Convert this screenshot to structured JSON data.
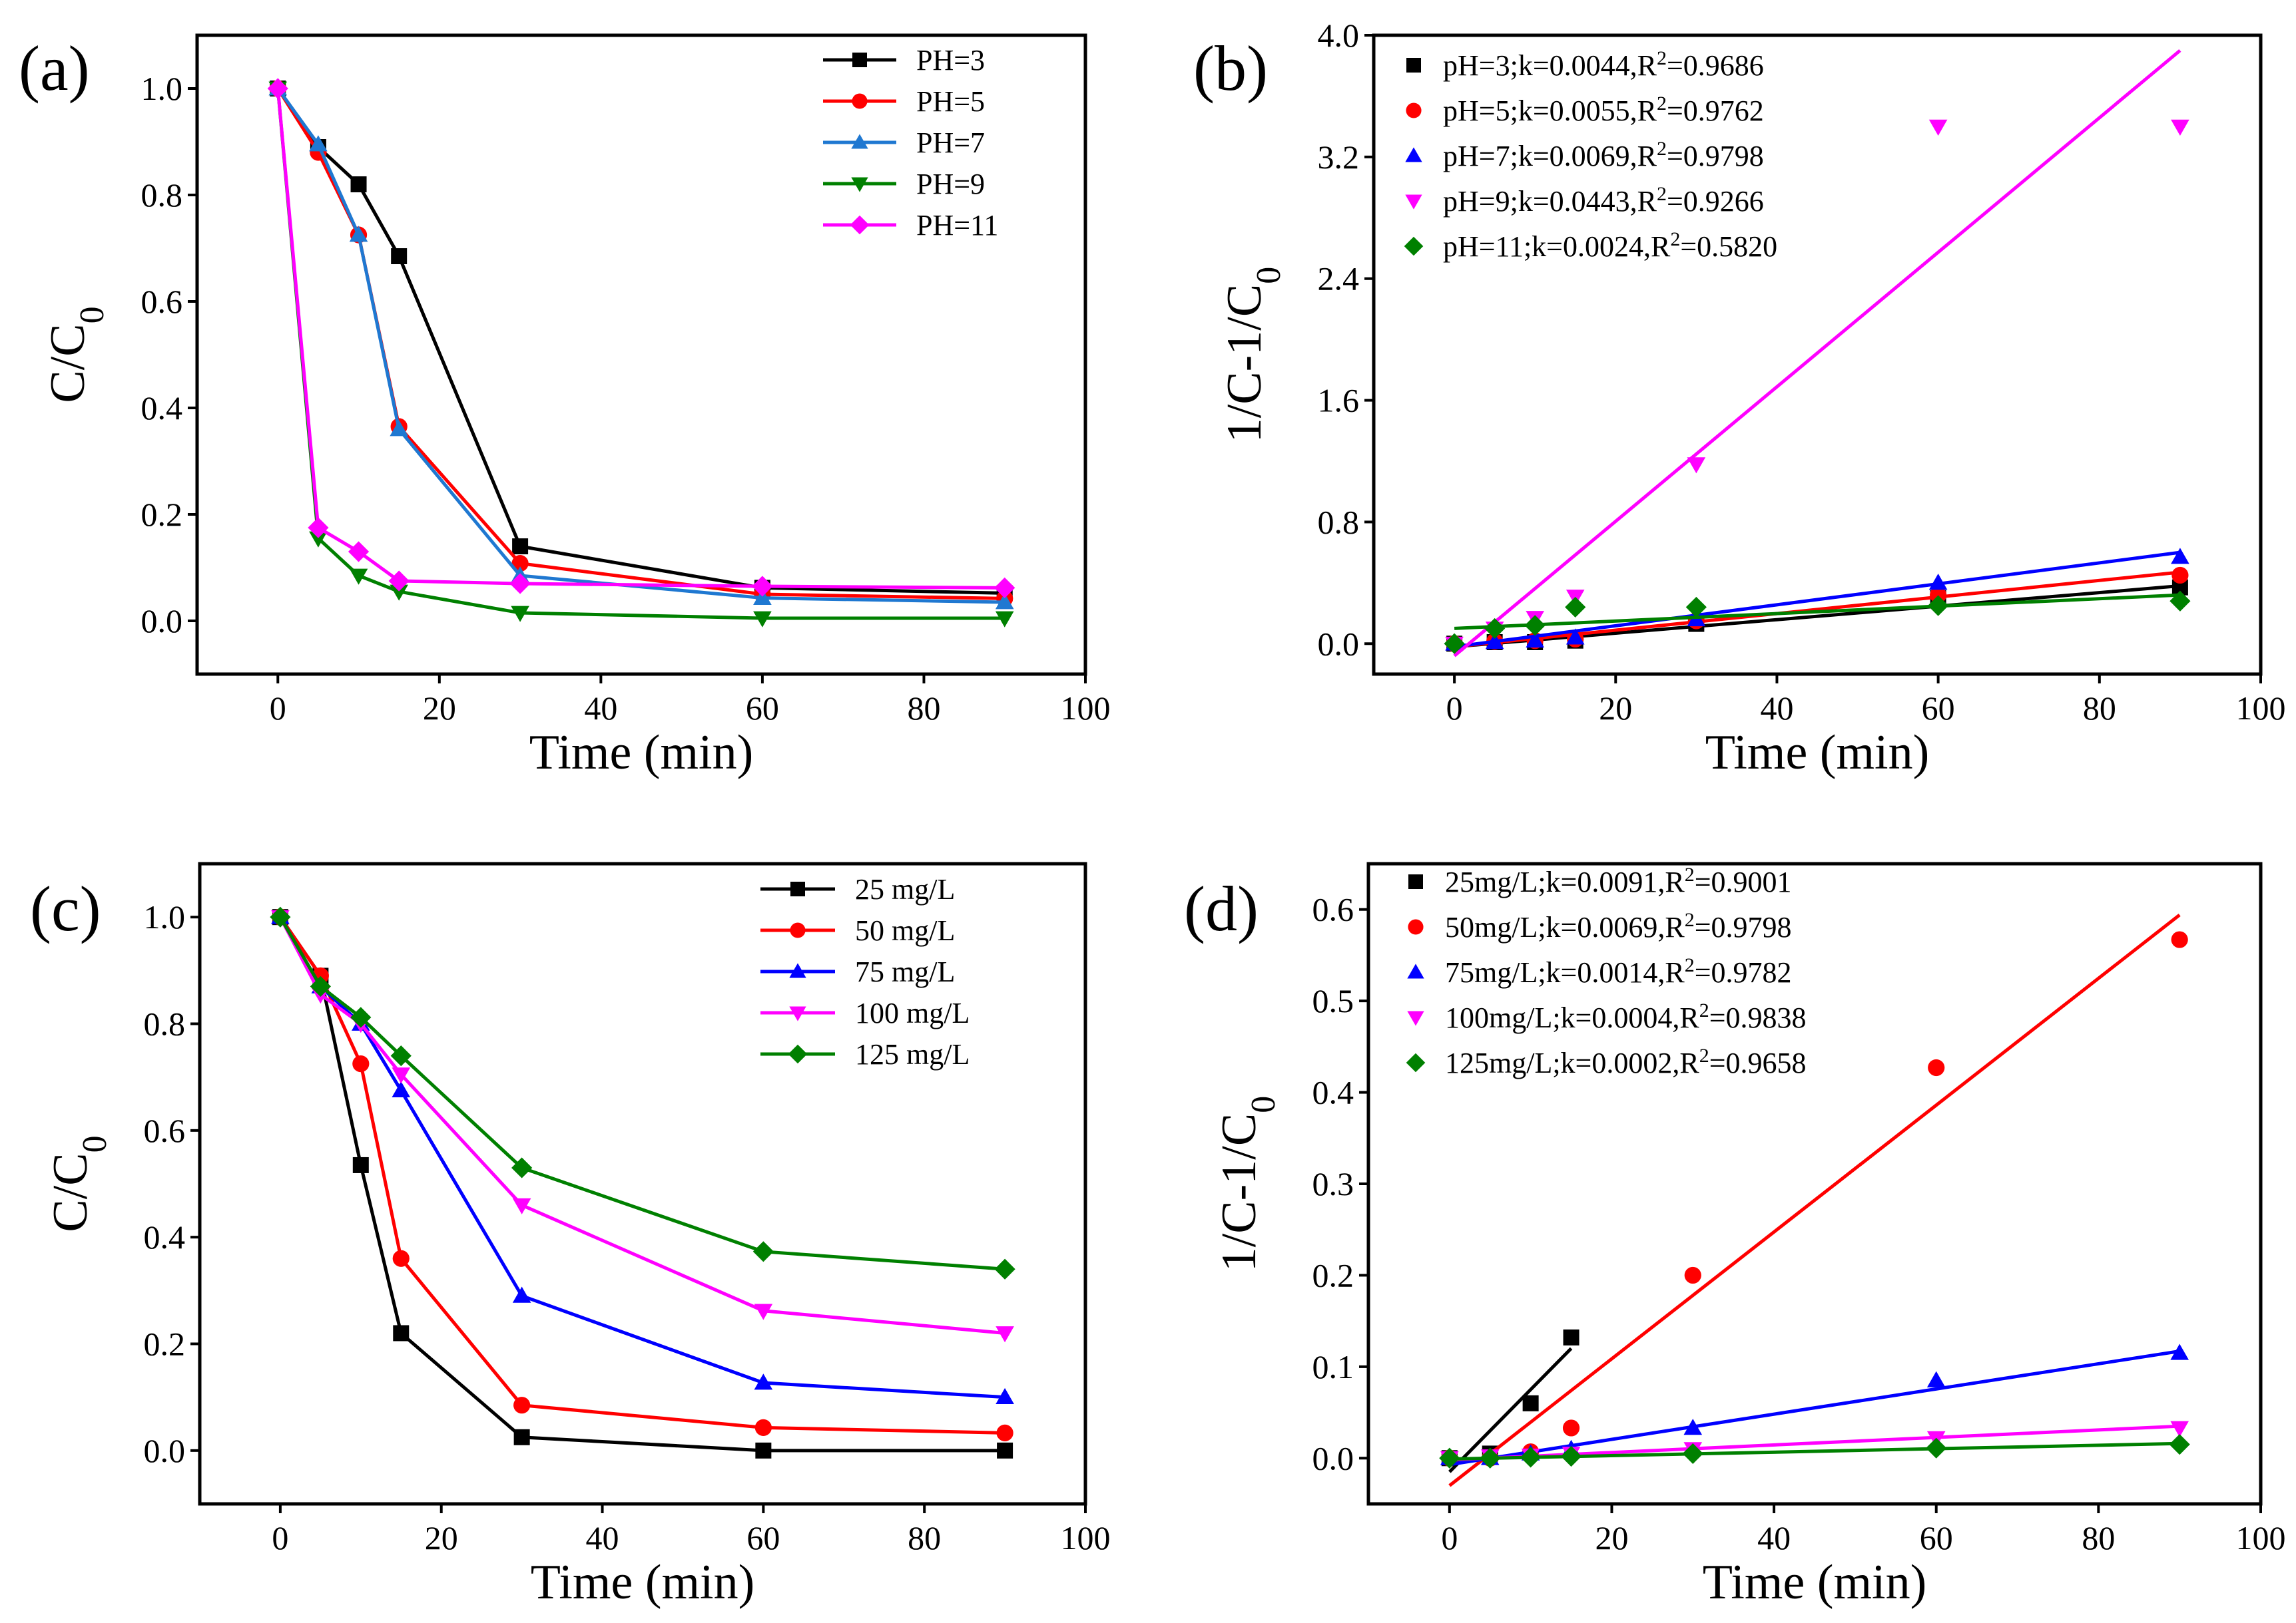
{
  "chart_data": [
    {
      "panel_label": "(a)",
      "type": "line",
      "xlabel": "Time (min)",
      "ylabel": "C/C",
      "ylabel_sub": "0",
      "xlim": [
        -10,
        100
      ],
      "ylim": [
        -0.1,
        1.1
      ],
      "xticks": [
        0,
        20,
        40,
        60,
        80,
        100
      ],
      "yticks": [
        0.0,
        0.2,
        0.4,
        0.6,
        0.8,
        1.0
      ],
      "ytick_labels": [
        "0.0",
        "0.2",
        "0.4",
        "0.6",
        "0.8",
        "1.0"
      ],
      "legend_position": "top-right",
      "x": [
        0,
        5,
        10,
        15,
        30,
        60,
        90
      ],
      "series": [
        {
          "name": "PH=3",
          "color": "#000000",
          "marker": "square",
          "values": [
            1.0,
            0.89,
            0.82,
            0.685,
            0.14,
            0.062,
            0.052
          ]
        },
        {
          "name": "PH=5",
          "color": "#ff0000",
          "marker": "circle",
          "values": [
            1.0,
            0.88,
            0.725,
            0.365,
            0.108,
            0.05,
            0.042
          ]
        },
        {
          "name": "PH=7",
          "color": "#1f78d1",
          "marker": "triangle-up",
          "values": [
            1.0,
            0.895,
            0.725,
            0.36,
            0.085,
            0.043,
            0.035
          ]
        },
        {
          "name": "PH=9",
          "color": "#008000",
          "marker": "triangle-down",
          "values": [
            1.0,
            0.155,
            0.085,
            0.055,
            0.015,
            0.005,
            0.005
          ]
        },
        {
          "name": "PH=11",
          "color": "#ff00ff",
          "marker": "diamond",
          "values": [
            1.0,
            0.175,
            0.13,
            0.075,
            0.07,
            0.065,
            0.062
          ]
        }
      ]
    },
    {
      "panel_label": "(b)",
      "type": "scatter",
      "xlabel": "Time (min)",
      "ylabel": "1/C-1/C",
      "ylabel_sub": "0",
      "xlim": [
        -10,
        100
      ],
      "ylim": [
        -0.2,
        4.0
      ],
      "xticks": [
        0,
        20,
        40,
        60,
        80,
        100
      ],
      "yticks": [
        0.0,
        0.8,
        1.6,
        2.4,
        3.2,
        4.0
      ],
      "ytick_labels": [
        "0.0",
        "0.8",
        "1.6",
        "2.4",
        "3.2",
        "4.0"
      ],
      "legend_position": "top-left",
      "x": [
        0,
        5,
        10,
        15,
        30,
        60,
        90
      ],
      "series": [
        {
          "name": "pH=3;k=0.0044,R",
          "sup": "2",
          "tail": "=0.9686",
          "color": "#000000",
          "marker": "square",
          "values": [
            0.0,
            0.01,
            0.01,
            0.02,
            0.13,
            0.3,
            0.37
          ],
          "fit": [
            [
              0,
              -0.02
            ],
            [
              90,
              0.38
            ]
          ]
        },
        {
          "name": "pH=5;k=0.0055,R",
          "sup": "2",
          "tail": "=0.9762",
          "color": "#ff0000",
          "marker": "circle",
          "values": [
            0.0,
            0.015,
            0.02,
            0.03,
            0.15,
            0.32,
            0.45
          ],
          "fit": [
            [
              0,
              -0.02
            ],
            [
              90,
              0.47
            ]
          ]
        },
        {
          "name": "pH=7;k=0.0069,R",
          "sup": "2",
          "tail": "=0.9798",
          "color": "#0000ff",
          "marker": "triangle-up",
          "values": [
            0.0,
            0.01,
            0.02,
            0.04,
            0.16,
            0.4,
            0.57
          ],
          "fit": [
            [
              0,
              -0.02
            ],
            [
              90,
              0.6
            ]
          ]
        },
        {
          "name": "pH=9;k=0.0443,R",
          "sup": "2",
          "tail": "=0.9266",
          "color": "#ff00ff",
          "marker": "triangle-down",
          "values": [
            0.0,
            0.1,
            0.17,
            0.31,
            1.18,
            3.4,
            3.4
          ],
          "fit": [
            [
              0,
              -0.08
            ],
            [
              90,
              3.9
            ]
          ]
        },
        {
          "name": "pH=11;k=0.0024,R",
          "sup": "2",
          "tail": "=0.5820",
          "color": "#008000",
          "marker": "diamond",
          "values": [
            0.0,
            0.1,
            0.12,
            0.24,
            0.24,
            0.25,
            0.28
          ],
          "fit": [
            [
              0,
              0.1
            ],
            [
              90,
              0.32
            ]
          ]
        }
      ]
    },
    {
      "panel_label": "(c)",
      "type": "line",
      "xlabel": "Time (min)",
      "ylabel": "C/C",
      "ylabel_sub": "0",
      "xlim": [
        -10,
        100
      ],
      "ylim": [
        -0.1,
        1.1
      ],
      "xticks": [
        0,
        20,
        40,
        60,
        80,
        100
      ],
      "yticks": [
        0.0,
        0.2,
        0.4,
        0.6,
        0.8,
        1.0
      ],
      "ytick_labels": [
        "0.0",
        "0.2",
        "0.4",
        "0.6",
        "0.8",
        "1.0"
      ],
      "legend_position": "top-right",
      "x": [
        0,
        5,
        10,
        15,
        30,
        60,
        90
      ],
      "series": [
        {
          "name": "25 mg/L",
          "color": "#000000",
          "marker": "square",
          "values": [
            1.0,
            0.89,
            0.535,
            0.22,
            0.025,
            0.0,
            0.0
          ]
        },
        {
          "name": "50 mg/L",
          "color": "#ff0000",
          "marker": "circle",
          "values": [
            1.0,
            0.89,
            0.725,
            0.36,
            0.085,
            0.043,
            0.033
          ]
        },
        {
          "name": "75 mg/L",
          "color": "#0000ff",
          "marker": "triangle-up",
          "values": [
            1.0,
            0.87,
            0.8,
            0.675,
            0.29,
            0.127,
            0.1
          ]
        },
        {
          "name": "100 mg/L",
          "color": "#ff00ff",
          "marker": "triangle-down",
          "values": [
            1.0,
            0.855,
            0.8,
            0.705,
            0.46,
            0.262,
            0.22
          ]
        },
        {
          "name": "125 mg/L",
          "color": "#008000",
          "marker": "diamond",
          "values": [
            1.0,
            0.87,
            0.812,
            0.74,
            0.53,
            0.373,
            0.34
          ]
        }
      ]
    },
    {
      "panel_label": "(d)",
      "type": "scatter",
      "xlabel": "Time (min)",
      "ylabel": "1/C-1/C",
      "ylabel_sub": "0",
      "xlim": [
        -10,
        100
      ],
      "ylim": [
        -0.05,
        0.65
      ],
      "xticks": [
        0,
        20,
        40,
        60,
        80,
        100
      ],
      "yticks": [
        0.0,
        0.1,
        0.2,
        0.3,
        0.4,
        0.5,
        0.6
      ],
      "ytick_labels": [
        "0.0",
        "0.1",
        "0.2",
        "0.3",
        "0.4",
        "0.5",
        "0.6"
      ],
      "legend_position": "top-left",
      "series": [
        {
          "name": "25mg/L;k=0.0091,R",
          "sup": "2",
          "tail": "=0.9001",
          "color": "#000000",
          "marker": "square",
          "x": [
            0,
            5,
            10,
            15
          ],
          "values": [
            0.0,
            0.005,
            0.06,
            0.132
          ],
          "fit": [
            [
              0,
              -0.015
            ],
            [
              15,
              0.12
            ]
          ]
        },
        {
          "name": "50mg/L;k=0.0069,R",
          "sup": "2",
          "tail": "=0.9798",
          "color": "#ff0000",
          "marker": "circle",
          "x": [
            0,
            5,
            10,
            15,
            30,
            60,
            90
          ],
          "values": [
            0.0,
            0.0,
            0.007,
            0.033,
            0.2,
            0.427,
            0.567
          ],
          "fit": [
            [
              0,
              -0.03
            ],
            [
              90,
              0.594
            ]
          ]
        },
        {
          "name": "75mg/L;k=0.0014,R",
          "sup": "2",
          "tail": "=0.9782",
          "color": "#0000ff",
          "marker": "triangle-up",
          "x": [
            0,
            5,
            10,
            15,
            30,
            60,
            90
          ],
          "values": [
            0.0,
            0.0,
            0.005,
            0.01,
            0.033,
            0.085,
            0.115
          ],
          "fit": [
            [
              0,
              -0.007
            ],
            [
              90,
              0.117
            ]
          ]
        },
        {
          "name": "100mg/L;k=0.0004,R",
          "sup": "2",
          "tail": "=0.9838",
          "color": "#ff00ff",
          "marker": "triangle-down",
          "x": [
            0,
            5,
            10,
            15,
            30,
            60,
            90
          ],
          "values": [
            0.0,
            0.002,
            0.003,
            0.005,
            0.01,
            0.022,
            0.033
          ],
          "fit": [
            [
              0,
              -0.002
            ],
            [
              90,
              0.035
            ]
          ]
        },
        {
          "name": "125mg/L;k=0.0002,R",
          "sup": "2",
          "tail": "=0.9658",
          "color": "#008000",
          "marker": "diamond",
          "x": [
            0,
            5,
            10,
            15,
            30,
            60,
            90
          ],
          "values": [
            0.0,
            0.0,
            0.001,
            0.002,
            0.005,
            0.011,
            0.015
          ],
          "fit": [
            [
              0,
              -0.001
            ],
            [
              90,
              0.016
            ]
          ]
        }
      ]
    }
  ]
}
